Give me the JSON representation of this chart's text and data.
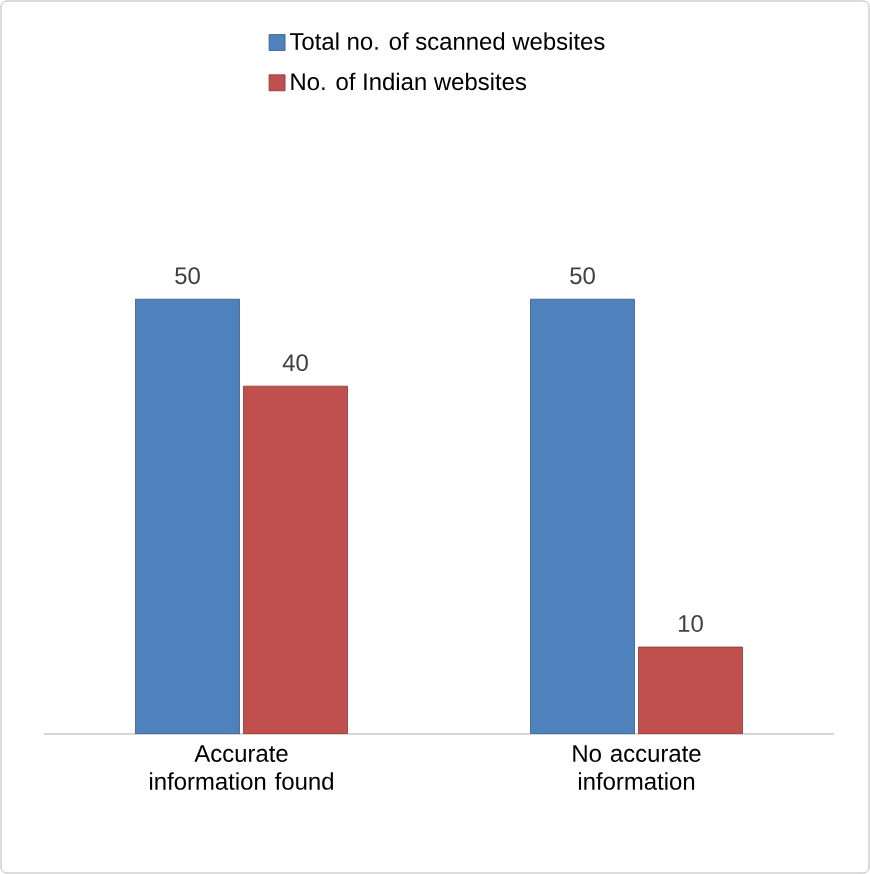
{
  "chart_data": {
    "type": "bar",
    "categories": [
      "Accurate information found",
      "No accurate information"
    ],
    "series": [
      {
        "name": "Total no. of scanned websites",
        "color": "#4f81bd",
        "values": [
          50,
          50
        ]
      },
      {
        "name": "No. of Indian websites",
        "color": "#c0504d",
        "values": [
          40,
          10
        ]
      }
    ],
    "data_labels": true,
    "legend": "top",
    "tick_labels": "x"
  }
}
